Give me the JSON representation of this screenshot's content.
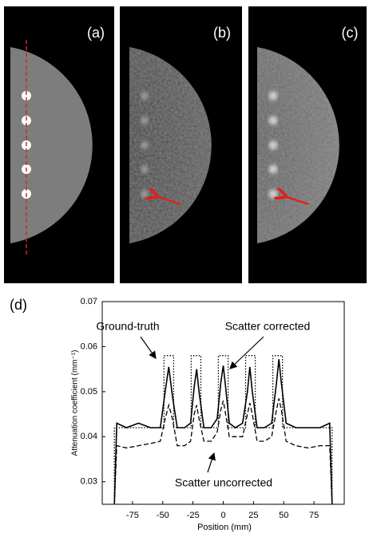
{
  "panels": [
    "(a)",
    "(b)",
    "(c)"
  ],
  "chart_data": {
    "type": "line",
    "panel_label": "(d)",
    "xlabel": "Position (mm)",
    "ylabel": "Attenuation coefficient (mm⁻¹)",
    "xlim": [
      -100,
      100
    ],
    "xticks": [
      -75,
      -50,
      -25,
      0,
      25,
      50,
      75
    ],
    "ylim": [
      0.025,
      0.07
    ],
    "yticks": [
      0.03,
      0.04,
      0.05,
      0.06,
      0.07
    ],
    "annotations": [
      "Ground-truth",
      "Scatter corrected",
      "Scatter uncorrected"
    ],
    "series": [
      {
        "name": "Ground-truth",
        "color": "#000000",
        "style": "dotted",
        "x": [
          -90,
          -90,
          -49,
          -49,
          -41,
          -41,
          -26.5,
          -26.5,
          -18.5,
          -18.5,
          -4,
          -4,
          4,
          4,
          18.5,
          18.5,
          26.5,
          26.5,
          41,
          41,
          49,
          49,
          90,
          90
        ],
        "values": [
          0.025,
          0.042,
          0.042,
          0.058,
          0.058,
          0.042,
          0.042,
          0.058,
          0.058,
          0.042,
          0.042,
          0.058,
          0.058,
          0.042,
          0.042,
          0.058,
          0.058,
          0.042,
          0.042,
          0.058,
          0.058,
          0.042,
          0.042,
          0.025
        ]
      },
      {
        "name": "Scatter corrected",
        "color": "#000000",
        "style": "solid",
        "x": [
          -90,
          -88,
          -80,
          -70,
          -60,
          -52,
          -48,
          -45,
          -42,
          -38,
          -32,
          -27,
          -24,
          -22,
          -20,
          -16,
          -10,
          -5,
          -2,
          0,
          2,
          5,
          10,
          16,
          20,
          22,
          24,
          28,
          34,
          40,
          44,
          46,
          48,
          52,
          60,
          70,
          80,
          88,
          90
        ],
        "values": [
          0.025,
          0.043,
          0.042,
          0.043,
          0.042,
          0.042,
          0.05,
          0.0555,
          0.049,
          0.042,
          0.042,
          0.043,
          0.051,
          0.055,
          0.05,
          0.042,
          0.042,
          0.044,
          0.052,
          0.0558,
          0.051,
          0.043,
          0.042,
          0.043,
          0.05,
          0.0555,
          0.05,
          0.042,
          0.042,
          0.043,
          0.052,
          0.0572,
          0.052,
          0.043,
          0.042,
          0.042,
          0.042,
          0.043,
          0.025
        ]
      },
      {
        "name": "Scatter uncorrected",
        "color": "#000000",
        "style": "dashed",
        "x": [
          -90,
          -88,
          -80,
          -70,
          -60,
          -52,
          -48,
          -45,
          -42,
          -38,
          -32,
          -27,
          -24,
          -22,
          -20,
          -16,
          -10,
          -5,
          -2,
          0,
          2,
          5,
          10,
          16,
          20,
          22,
          24,
          28,
          34,
          40,
          44,
          46,
          48,
          52,
          60,
          70,
          80,
          88,
          90
        ],
        "values": [
          0.025,
          0.038,
          0.0375,
          0.038,
          0.0385,
          0.039,
          0.044,
          0.047,
          0.044,
          0.038,
          0.038,
          0.039,
          0.045,
          0.047,
          0.044,
          0.039,
          0.039,
          0.041,
          0.046,
          0.048,
          0.045,
          0.04,
          0.04,
          0.04,
          0.045,
          0.0475,
          0.045,
          0.039,
          0.039,
          0.04,
          0.046,
          0.0485,
          0.046,
          0.039,
          0.038,
          0.0375,
          0.038,
          0.038,
          0.025
        ]
      }
    ]
  }
}
